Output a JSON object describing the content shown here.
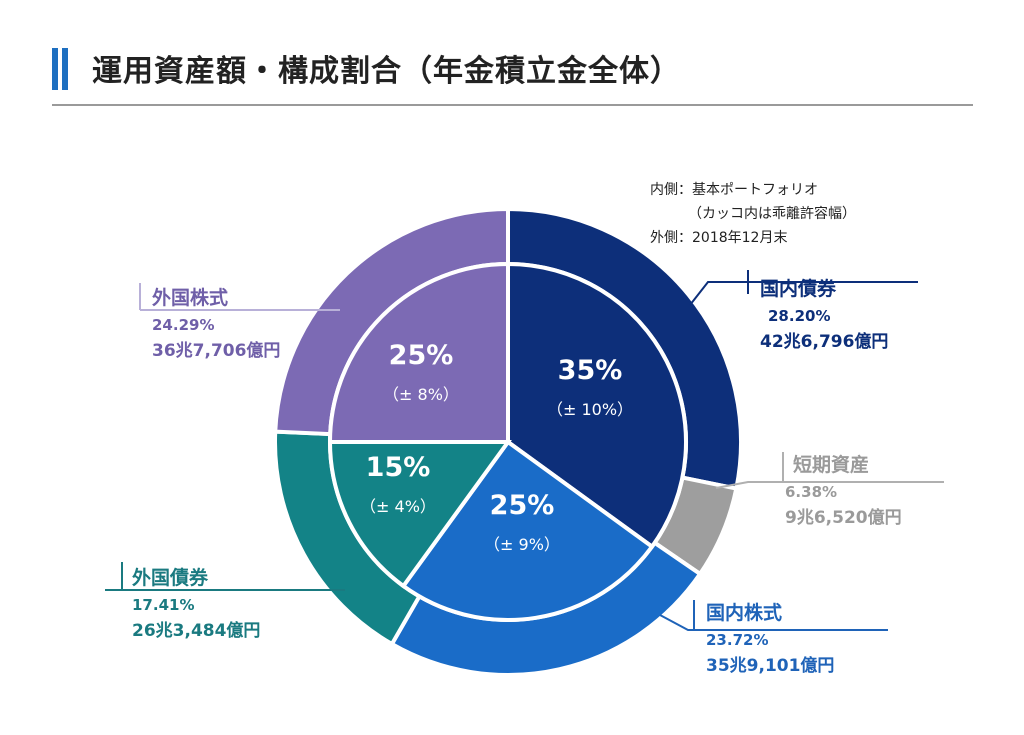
{
  "title": "運用資産額・構成割合（年金積立金全体）",
  "legend_note": {
    "line1": "内側：基本ポートフォリオ",
    "line2": "（カッコ内は乖離許容幅）",
    "line3": "外側：2018年12月末"
  },
  "chart_data": {
    "type": "pie",
    "layout": "nested-donut",
    "outer": {
      "label": "2018年12月末",
      "slices": [
        {
          "name": "国内債券",
          "percent": 28.2,
          "pct_text": "28.20%",
          "amount": "42兆6,796億円",
          "color": "#0d2f7a",
          "label_color": "#0d2f7a"
        },
        {
          "name": "短期資産",
          "percent": 6.38,
          "pct_text": "6.38%",
          "amount": "9兆6,520億円",
          "color": "#9e9e9e",
          "label_color": "#9a9a9a"
        },
        {
          "name": "国内株式",
          "percent": 23.72,
          "pct_text": "23.72%",
          "amount": "35兆9,101億円",
          "color": "#1a6cc8",
          "label_color": "#1f63b8"
        },
        {
          "name": "外国債券",
          "percent": 17.41,
          "pct_text": "17.41%",
          "amount": "26兆3,484億円",
          "color": "#138387",
          "label_color": "#1a7a80"
        },
        {
          "name": "外国株式",
          "percent": 24.29,
          "pct_text": "24.29%",
          "amount": "36兆7,706億円",
          "color": "#7c6ab4",
          "label_color": "#6f5fa8"
        }
      ]
    },
    "inner": {
      "label": "基本ポートフォリオ",
      "slices": [
        {
          "name": "国内債券",
          "percent": 35,
          "pct_text": "35%",
          "tolerance": "（± 10%）",
          "color": "#0d2f7a"
        },
        {
          "name": "国内株式",
          "percent": 25,
          "pct_text": "25%",
          "tolerance": "（± 9%）",
          "color": "#1a6cc8"
        },
        {
          "name": "外国債券",
          "percent": 15,
          "pct_text": "15%",
          "tolerance": "（± 4%）",
          "color": "#138387"
        },
        {
          "name": "外国株式",
          "percent": 25,
          "pct_text": "25%",
          "tolerance": "（± 8%）",
          "color": "#7c6ab4"
        }
      ]
    }
  }
}
